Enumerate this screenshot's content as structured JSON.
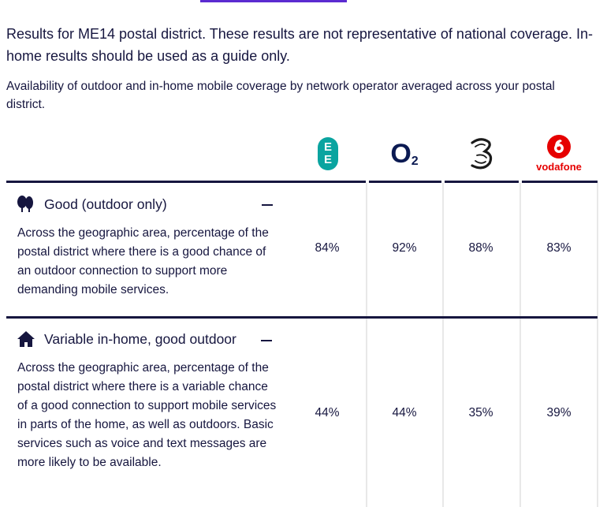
{
  "intro": "Results for ME14 postal district. These results are not representative of national coverage. In-home results should be used as a guide only.",
  "subintro": "Availability of outdoor and in-home mobile coverage by network operator averaged across your postal district.",
  "operators": {
    "ee": {
      "line1": "E",
      "line2": "E",
      "color": "#0aa4a0"
    },
    "o2": {
      "main": "O",
      "sub": "2",
      "color": "#0b1a52"
    },
    "three": {
      "color": "#1a1a1a"
    },
    "vodafone": {
      "name": "vodafone",
      "color": "#e60000"
    }
  },
  "rows": [
    {
      "title": "Good (outdoor only)",
      "icon": "trees-icon",
      "description": "Across the geographic area, percentage of the postal district where there is a good chance of an outdoor connection to support more demanding mobile services.",
      "values": {
        "ee": "84%",
        "o2": "92%",
        "three": "88%",
        "vodafone": "83%"
      }
    },
    {
      "title": "Variable in-home, good outdoor",
      "icon": "house-icon",
      "description": "Across the geographic area, percentage of the postal district where there is a variable chance of a good connection to support mobile services in parts of the home, as well as outdoors. Basic services such as voice and text messages are more likely to be available.",
      "values": {
        "ee": "44%",
        "o2": "44%",
        "three": "35%",
        "vodafone": "39%"
      }
    }
  ],
  "accent": "#5b2bd1",
  "text_color": "#16163f"
}
